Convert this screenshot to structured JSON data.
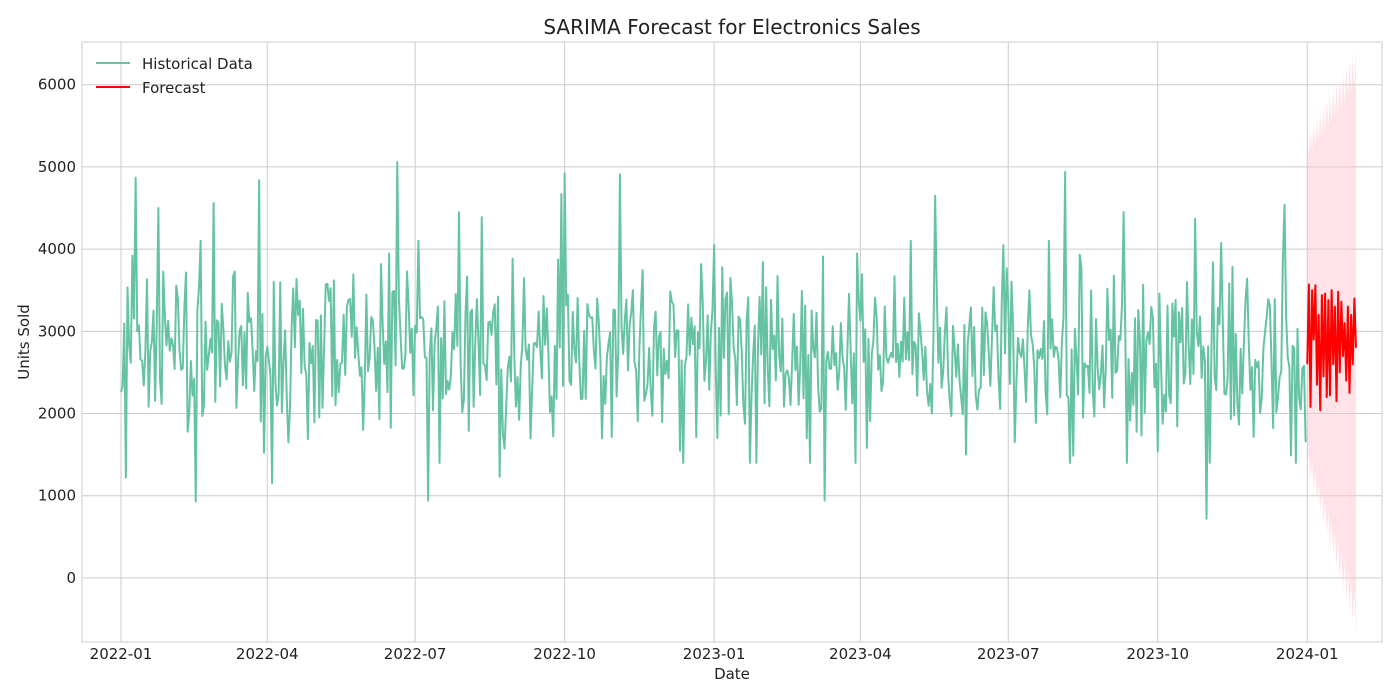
{
  "chart_data": {
    "type": "line",
    "title": "SARIMA Forecast for Electronics Sales",
    "xlabel": "Date",
    "ylabel": "Units Sold",
    "xlim": [
      "2021-12-08",
      "2024-02-16"
    ],
    "ylim": [
      -780,
      6520
    ],
    "x_ticks": [
      "2022-01",
      "2022-04",
      "2022-07",
      "2022-10",
      "2023-01",
      "2023-04",
      "2023-07",
      "2023-10",
      "2024-01"
    ],
    "y_ticks": [
      0,
      1000,
      2000,
      3000,
      4000,
      5000,
      6000
    ],
    "grid": true,
    "legend": {
      "placement": "top-left",
      "entries": [
        "Historical Data",
        "Forecast"
      ]
    },
    "colors": {
      "historical": "#66c2a5",
      "forecast": "#ff0000",
      "confidence_band": "#ffc0cb"
    },
    "series": [
      {
        "name": "Historical Data",
        "start_date": "2022-01-01",
        "end_date": "2023-12-31",
        "frequency": "daily",
        "mean": 2750,
        "std": 700,
        "notable_points": [
          {
            "date": "2022-01-04",
            "value": 1220
          },
          {
            "date": "2022-01-10",
            "value": 4870
          },
          {
            "date": "2022-01-24",
            "value": 4500
          },
          {
            "date": "2022-02-16",
            "value": 930
          },
          {
            "date": "2022-02-27",
            "value": 4560
          },
          {
            "date": "2022-03-27",
            "value": 4840
          },
          {
            "date": "2022-04-04",
            "value": 1150
          },
          {
            "date": "2022-06-20",
            "value": 5060
          },
          {
            "date": "2022-07-09",
            "value": 940
          },
          {
            "date": "2022-07-28",
            "value": 4450
          },
          {
            "date": "2022-08-11",
            "value": 4390
          },
          {
            "date": "2022-08-22",
            "value": 1230
          },
          {
            "date": "2022-09-29",
            "value": 4670
          },
          {
            "date": "2022-10-01",
            "value": 4920
          },
          {
            "date": "2022-11-04",
            "value": 4910
          },
          {
            "date": "2023-01-01",
            "value": 4050
          },
          {
            "date": "2023-03-10",
            "value": 940
          },
          {
            "date": "2023-05-17",
            "value": 4650
          },
          {
            "date": "2023-08-05",
            "value": 4940
          },
          {
            "date": "2023-09-10",
            "value": 4450
          },
          {
            "date": "2023-10-24",
            "value": 4370
          },
          {
            "date": "2023-10-31",
            "value": 720
          },
          {
            "date": "2023-12-18",
            "value": 4540
          },
          {
            "date": "2023-12-22",
            "value": 1490
          },
          {
            "date": "2023-12-31",
            "value": 1650
          }
        ]
      },
      {
        "name": "Forecast",
        "start_date": "2024-01-01",
        "end_date": "2024-01-31",
        "frequency": "daily",
        "values": [
          2600,
          3570,
          2080,
          3500,
          2900,
          3560,
          2350,
          3200,
          2040,
          3440,
          2450,
          3460,
          2200,
          3380,
          2220,
          3500,
          2600,
          3300,
          2150,
          3480,
          2500,
          3360,
          2700,
          3100,
          2400,
          3300,
          2250,
          3200,
          2600,
          3400,
          2800
        ],
        "confidence_interval": {
          "lower_start": 1450,
          "upper_start": 5250,
          "lower_end": -450,
          "upper_end": 6200
        }
      }
    ]
  }
}
